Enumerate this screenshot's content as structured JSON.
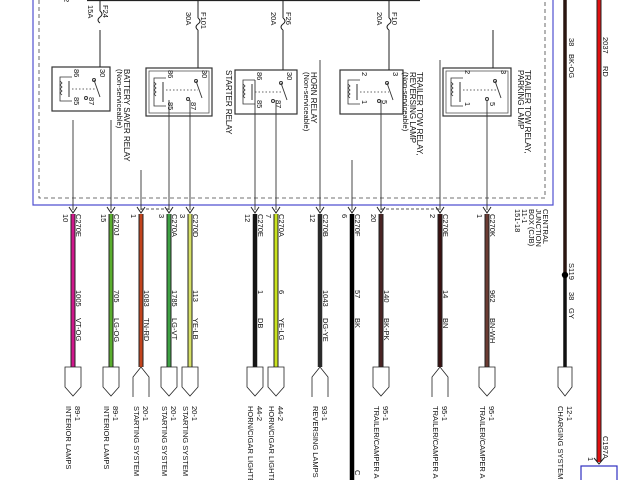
{
  "fuses": [
    {
      "name": "F24",
      "rating": "15A"
    },
    {
      "name": "F101",
      "rating": "30A"
    },
    {
      "name": "F26",
      "rating": "20A"
    },
    {
      "name": "F10",
      "rating": "20A"
    }
  ],
  "relays": [
    {
      "title": "BATTERY SAVER RELAY",
      "note": "(Non-serviceable)",
      "pins": [
        "86",
        "30",
        "85",
        "87"
      ]
    },
    {
      "title": "STARTER RELAY",
      "note": "",
      "pins": [
        "86",
        "30",
        "85",
        "87"
      ]
    },
    {
      "title": "HORN RELAY",
      "note": "(Non-serviceable)",
      "pins": [
        "86",
        "30",
        "85",
        "87"
      ]
    },
    {
      "title": "TRAILER TOW RELAY, REVERSING LAMP",
      "note": "(Non-serviceable)",
      "pins": [
        "2",
        "3",
        "1",
        "5"
      ]
    },
    {
      "title": "TRAILER TOW RELAY, PARKING LAMP",
      "note": "",
      "pins": [
        "2",
        "3",
        "1",
        "5"
      ]
    }
  ],
  "cjb": {
    "lines": [
      "CENTRAL",
      "JUNCTION",
      "BOX (CJB)",
      "11-1",
      "151-18"
    ]
  },
  "wires": [
    {
      "connector": "C270E",
      "pin": "10",
      "circuit": "1005",
      "color_code": "VT-OG",
      "color": "#d0178c",
      "dest_page": "89-1",
      "dest": "INTERIOR LAMPS",
      "end": "down"
    },
    {
      "connector": "C270J",
      "pin": "15",
      "circuit": "705",
      "color_code": "LG-OG",
      "color": "#5aae2e",
      "dest_page": "89-1",
      "dest": "INTERIOR LAMPS",
      "end": "down"
    },
    {
      "connector": "",
      "pin": "1",
      "circuit": "1083",
      "color_code": "TN-RD",
      "color": "#c2431c",
      "dest_page": "20-1",
      "dest": "STARTING SYSTEM",
      "end": "up"
    },
    {
      "connector": "C270A",
      "pin": "3",
      "circuit": "1785",
      "color_code": "LG-VT",
      "color": "#3ea244",
      "dest_page": "20-1",
      "dest": "STARTING SYSTEM",
      "end": "down"
    },
    {
      "connector": "C270D",
      "pin": "3",
      "circuit": "113",
      "color_code": "YE-LB",
      "color": "#d6e066",
      "dest_page": "20-1",
      "dest": "STARTING SYSTEM",
      "end": "down"
    },
    {
      "connector": "C270E",
      "pin": "12",
      "circuit": "1",
      "color_code": "DB",
      "color": "#151515",
      "dest_page": "44-2",
      "dest": "HORN/CIGAR LIGHTER",
      "end": "down"
    },
    {
      "connector": "C270A",
      "pin": "7",
      "circuit": "6",
      "color_code": "YE-LG",
      "color": "#c9e21e",
      "dest_page": "44-2",
      "dest": "HORN/CIGAR LIGHTER",
      "end": "down"
    },
    {
      "connector": "C270B",
      "pin": "12",
      "circuit": "1043",
      "color_code": "DG-YE",
      "color": "#2a2a2a",
      "dest_page": "93-1",
      "dest": "REVERSING LAMPS",
      "end": "up"
    },
    {
      "connector": "C270F",
      "pin": "6",
      "circuit": "57",
      "color_code": "BK",
      "color": "#000000",
      "dest_page": "",
      "dest": "C",
      "end": "none"
    },
    {
      "connector": "",
      "pin": "20",
      "circuit": "140",
      "color_code": "BK-PK",
      "color": "#4a2424",
      "dest_page": "95-1",
      "dest": "TRAILER/CAMPER A",
      "end": "down"
    },
    {
      "connector": "C270E",
      "pin": "2",
      "circuit": "14",
      "color_code": "BN",
      "color": "#3a1212",
      "dest_page": "95-1",
      "dest": "TRAILER/CAMPER A",
      "end": "up"
    },
    {
      "connector": "C270K",
      "pin": "1",
      "circuit": "962",
      "color_code": "BN-WH",
      "color": "#6b3b32",
      "dest_page": "95-1",
      "dest": "TRAILER/CAMPER A",
      "end": "down"
    }
  ],
  "feed_wires": [
    {
      "circuit": "38",
      "color_code": "BK-OG",
      "color": "#2a1510",
      "splice": "S119",
      "lower_circuit": "38",
      "lower_color_code": "GY",
      "dest_page": "12-1",
      "dest": "CHARGING SYSTEM"
    },
    {
      "circuit": "2037",
      "color_code": "RD",
      "color": "#e01010",
      "connector": "C197A",
      "pin": "1"
    }
  ],
  "top_fragment": "2"
}
